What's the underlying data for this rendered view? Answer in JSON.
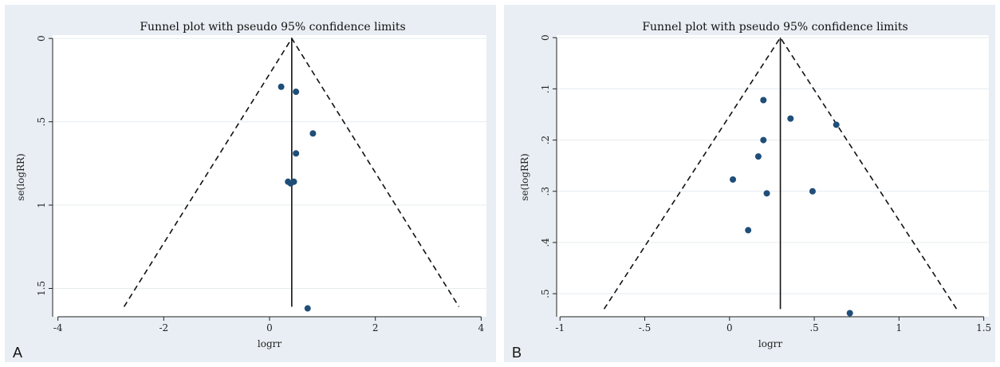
{
  "panels": [
    {
      "label": "A",
      "chart_data": {
        "type": "scatter",
        "title": "Funnel plot with pseudo 95% confidence limits",
        "xlabel": "logrr",
        "ylabel": "se(logRR)",
        "xlim": [
          -4.1,
          4.1
        ],
        "ylim": [
          1.67,
          -0.02
        ],
        "y_reversed": true,
        "x_ticks": [
          "-4",
          "-2",
          "0",
          "2",
          "4"
        ],
        "y_ticks": [
          "0",
          ".5",
          "1",
          "1.5"
        ],
        "x_tick_values": [
          -4,
          -2,
          0,
          2,
          4
        ],
        "y_tick_values": [
          0,
          0.5,
          1,
          1.5
        ],
        "pooled_estimate": 0.42,
        "ci_lines": [
          [
            -2.75,
            1.61
          ],
          [
            0.42,
            0.0
          ],
          [
            3.58,
            1.61
          ]
        ],
        "points": [
          {
            "x": 0.22,
            "y": 0.29
          },
          {
            "x": 0.5,
            "y": 0.32
          },
          {
            "x": 0.82,
            "y": 0.57
          },
          {
            "x": 0.5,
            "y": 0.69
          },
          {
            "x": 0.35,
            "y": 0.86
          },
          {
            "x": 0.4,
            "y": 0.87
          },
          {
            "x": 0.46,
            "y": 0.86
          },
          {
            "x": 0.72,
            "y": 1.62
          }
        ],
        "grid": true
      }
    },
    {
      "label": "B",
      "chart_data": {
        "type": "scatter",
        "title": "Funnel plot with pseudo 95% confidence limits",
        "xlabel": "logrr",
        "ylabel": "se(logRR)",
        "xlim": [
          -1.02,
          1.53
        ],
        "ylim": [
          0.545,
          -0.005
        ],
        "y_reversed": true,
        "x_ticks": [
          "-1",
          "-.5",
          "0",
          ".5",
          "1",
          "1.5"
        ],
        "y_ticks": [
          "0",
          ".1",
          ".2",
          ".3",
          ".4",
          ".5"
        ],
        "x_tick_values": [
          -1,
          -0.5,
          0,
          0.5,
          1,
          1.5
        ],
        "y_tick_values": [
          0,
          0.1,
          0.2,
          0.3,
          0.4,
          0.5
        ],
        "pooled_estimate": 0.3,
        "ci_lines": [
          [
            -0.74,
            0.53
          ],
          [
            0.3,
            0.0
          ],
          [
            1.34,
            0.53
          ]
        ],
        "points": [
          {
            "x": 0.2,
            "y": 0.122
          },
          {
            "x": 0.36,
            "y": 0.158
          },
          {
            "x": 0.63,
            "y": 0.17
          },
          {
            "x": 0.2,
            "y": 0.2
          },
          {
            "x": 0.17,
            "y": 0.232
          },
          {
            "x": 0.02,
            "y": 0.277
          },
          {
            "x": 0.49,
            "y": 0.3
          },
          {
            "x": 0.22,
            "y": 0.304
          },
          {
            "x": 0.11,
            "y": 0.376
          },
          {
            "x": 0.71,
            "y": 0.538
          }
        ],
        "grid": true
      }
    }
  ]
}
